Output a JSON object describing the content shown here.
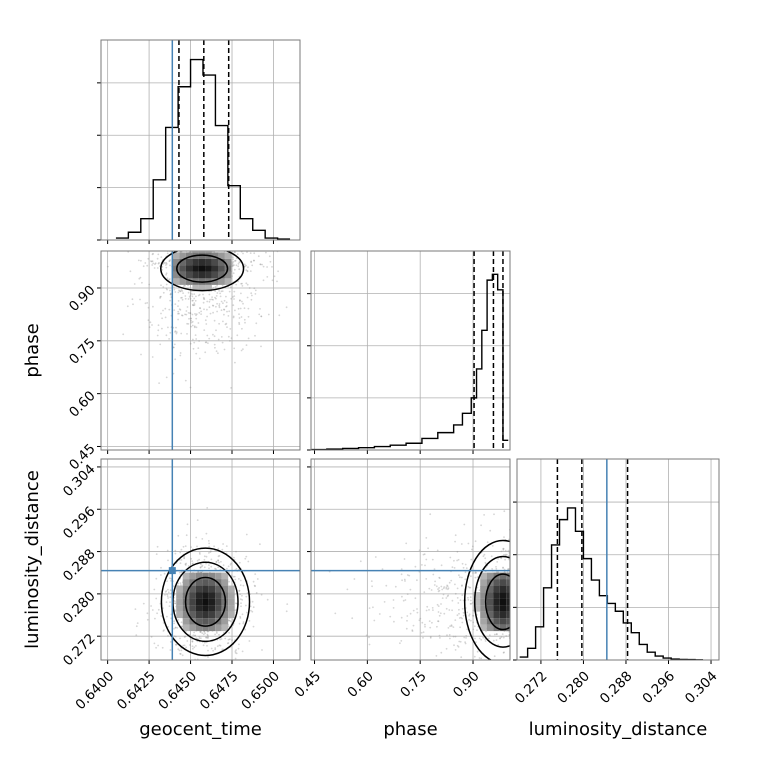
{
  "chart_data": {
    "type": "corner",
    "parameters": [
      "geocent_time",
      "phase",
      "luminosity_distance"
    ],
    "truths": {
      "geocent_time": 0.6439,
      "phase": null,
      "luminosity_distance": 0.2844
    },
    "colors": {
      "truth": "#4682b4",
      "line": "#000000",
      "grid": "#b0b0b0"
    },
    "grid": true,
    "axes": {
      "geocent_time": {
        "range": [
          0.6396,
          0.6516
        ],
        "ticks": [
          0.64,
          0.6425,
          0.645,
          0.6475,
          0.65
        ],
        "tick_labels": [
          "0.6400",
          "0.6425",
          "0.6450",
          "0.6475",
          "0.6500"
        ]
      },
      "phase": {
        "range": [
          0.44,
          1.005
        ],
        "ticks": [
          0.45,
          0.6,
          0.75,
          0.9
        ],
        "tick_labels": [
          "0.45",
          "0.60",
          "0.75",
          "0.90"
        ]
      },
      "luminosity_distance": {
        "range": [
          0.2675,
          0.3055
        ],
        "ticks": [
          0.272,
          0.28,
          0.288,
          0.296,
          0.304
        ],
        "tick_labels": [
          "0.272",
          "0.280",
          "0.288",
          "0.296",
          "0.304"
        ]
      }
    },
    "marginals": {
      "geocent_time": {
        "bin_edges": [
          0.6405,
          0.64125,
          0.642,
          0.64275,
          0.6435,
          0.64425,
          0.645,
          0.64575,
          0.6465,
          0.64725,
          0.648,
          0.64875,
          0.6495,
          0.65025,
          0.651
        ],
        "heights": [
          0.01,
          0.04,
          0.11,
          0.31,
          0.58,
          0.79,
          0.93,
          0.85,
          0.59,
          0.28,
          0.11,
          0.05,
          0.01,
          0.005
        ],
        "quantiles": [
          0.6443,
          0.6458,
          0.6473
        ]
      },
      "phase": {
        "bin_edges": [
          0.44,
          0.485,
          0.53,
          0.575,
          0.62,
          0.665,
          0.71,
          0.755,
          0.8,
          0.845,
          0.87,
          0.895,
          0.91,
          0.925,
          0.94,
          0.955,
          0.97,
          0.985,
          1.0
        ],
        "heights": [
          0.002,
          0.005,
          0.008,
          0.012,
          0.018,
          0.025,
          0.035,
          0.06,
          0.09,
          0.13,
          0.19,
          0.27,
          0.42,
          0.62,
          0.88,
          0.91,
          0.83,
          0.05
        ],
        "quantiles": [
          0.903,
          0.958,
          0.985
        ]
      },
      "luminosity_distance": {
        "bin_edges": [
          0.268,
          0.2695,
          0.271,
          0.2725,
          0.274,
          0.2755,
          0.277,
          0.2785,
          0.28,
          0.2815,
          0.283,
          0.2845,
          0.286,
          0.2875,
          0.289,
          0.2905,
          0.292,
          0.2935,
          0.295,
          0.2965,
          0.298,
          0.2995,
          0.301,
          0.3025
        ],
        "heights": [
          0.015,
          0.06,
          0.17,
          0.37,
          0.59,
          0.72,
          0.78,
          0.66,
          0.52,
          0.41,
          0.33,
          0.29,
          0.25,
          0.19,
          0.14,
          0.08,
          0.04,
          0.02,
          0.01,
          0.005,
          0.003,
          0.002,
          0.001
        ],
        "quantiles": [
          0.2751,
          0.2797,
          0.2883
        ]
      }
    },
    "joint": {
      "geocent_time__phase": {
        "mean": [
          0.6457,
          0.955
        ],
        "sd": [
          0.0014,
          0.035
        ],
        "levels": [
          0.95,
          1.55
        ]
      },
      "geocent_time__luminosity_distance": {
        "mean": [
          0.6459,
          0.2785
        ],
        "sd": [
          0.0011,
          0.0042
        ],
        "levels": [
          0.95,
          1.55,
          2.1
        ]
      },
      "phase__luminosity_distance": {
        "mean": [
          0.985,
          0.2785
        ],
        "sd": [
          0.045,
          0.0048
        ],
        "levels": [
          0.95,
          1.55,
          2.1
        ]
      }
    }
  }
}
